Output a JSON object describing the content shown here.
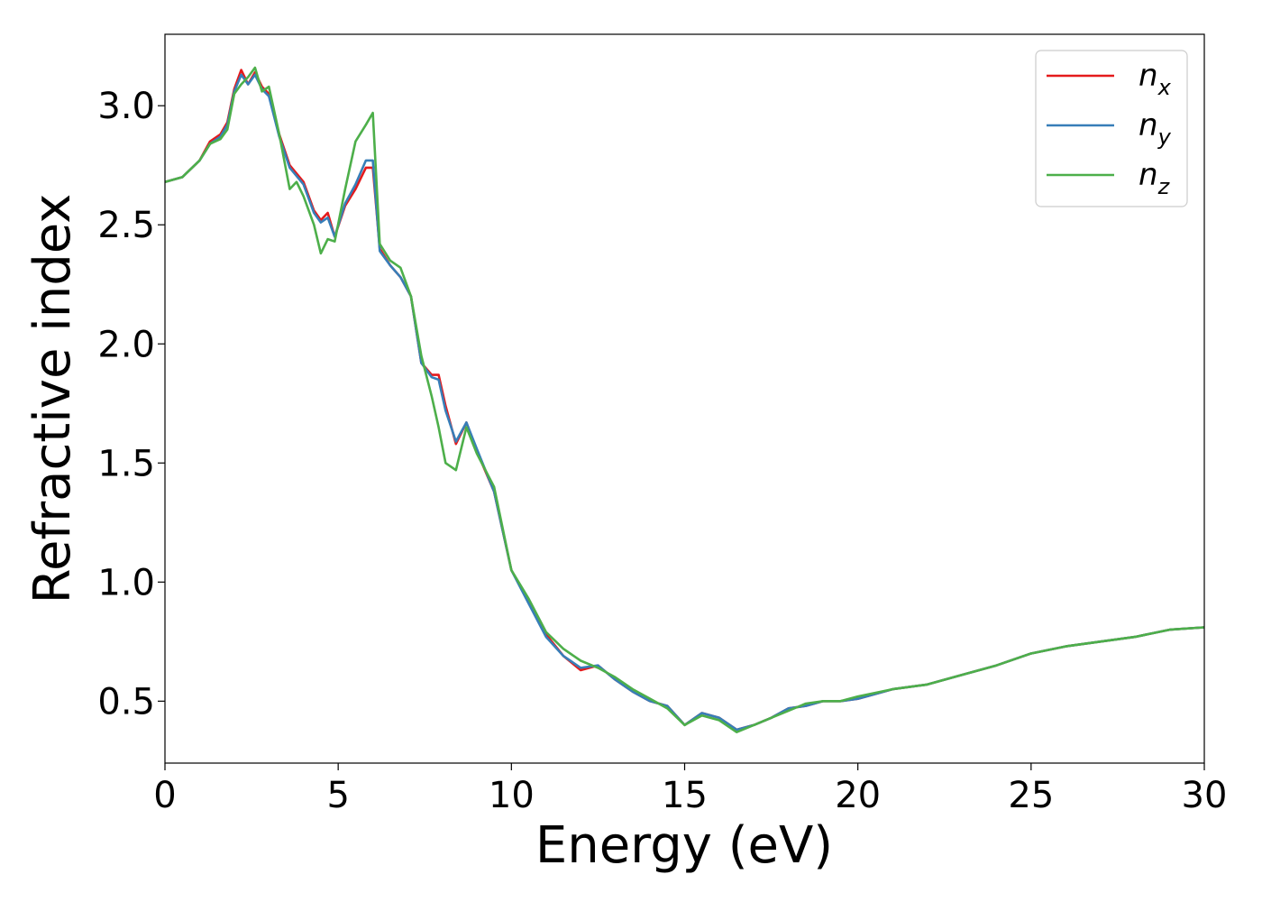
{
  "chart_data": {
    "type": "line",
    "title": "",
    "xlabel": "Energy (eV)",
    "ylabel": "Refractive index",
    "xlim": [
      0,
      30
    ],
    "ylim": [
      0.24,
      3.3
    ],
    "xticks": [
      0,
      5,
      10,
      15,
      20,
      25,
      30
    ],
    "xtick_labels": [
      "0",
      "5",
      "10",
      "15",
      "20",
      "25",
      "30"
    ],
    "yticks": [
      0.5,
      1.0,
      1.5,
      2.0,
      2.5,
      3.0
    ],
    "ytick_labels": [
      "0.5",
      "1.0",
      "1.5",
      "2.0",
      "2.5",
      "3.0"
    ],
    "grid": false,
    "legend_position": "top-right",
    "series": [
      {
        "name": "n",
        "subscript": "x",
        "color": "#e41a1c",
        "x": [
          0,
          0.5,
          1.0,
          1.3,
          1.6,
          1.8,
          2.0,
          2.2,
          2.4,
          2.6,
          2.8,
          3.0,
          3.3,
          3.6,
          4.0,
          4.3,
          4.5,
          4.7,
          4.9,
          5.2,
          5.5,
          5.8,
          6.0,
          6.2,
          6.5,
          6.8,
          7.1,
          7.4,
          7.7,
          7.9,
          8.1,
          8.4,
          8.7,
          9.0,
          9.5,
          10.0,
          10.5,
          11.0,
          11.5,
          12.0,
          12.5,
          13.0,
          13.5,
          14.0,
          14.5,
          15.0,
          15.5,
          16.0,
          16.5,
          17.0,
          17.5,
          18.0,
          18.5,
          19.0,
          19.5,
          20.0,
          21.0,
          22.0,
          23.0,
          24.0,
          25.0,
          26.0,
          27.0,
          28.0,
          29.0,
          30.0
        ],
        "y": [
          2.68,
          2.7,
          2.77,
          2.85,
          2.88,
          2.93,
          3.07,
          3.15,
          3.09,
          3.14,
          3.08,
          3.05,
          2.88,
          2.75,
          2.68,
          2.56,
          2.52,
          2.55,
          2.45,
          2.58,
          2.65,
          2.74,
          2.74,
          2.4,
          2.33,
          2.28,
          2.2,
          1.92,
          1.87,
          1.87,
          1.74,
          1.58,
          1.67,
          1.55,
          1.38,
          1.05,
          0.92,
          0.78,
          0.69,
          0.63,
          0.65,
          0.59,
          0.54,
          0.5,
          0.48,
          0.4,
          0.45,
          0.43,
          0.38,
          0.4,
          0.43,
          0.47,
          0.48,
          0.5,
          0.5,
          0.51,
          0.55,
          0.57,
          0.61,
          0.65,
          0.7,
          0.73,
          0.75,
          0.77,
          0.8,
          0.81
        ]
      },
      {
        "name": "n",
        "subscript": "y",
        "color": "#377eb8",
        "x": [
          0,
          0.5,
          1.0,
          1.3,
          1.6,
          1.8,
          2.0,
          2.2,
          2.4,
          2.6,
          2.8,
          3.0,
          3.3,
          3.6,
          4.0,
          4.3,
          4.5,
          4.7,
          4.9,
          5.2,
          5.5,
          5.8,
          6.0,
          6.2,
          6.5,
          6.8,
          7.1,
          7.4,
          7.7,
          7.9,
          8.1,
          8.4,
          8.7,
          9.0,
          9.5,
          10.0,
          10.5,
          11.0,
          11.5,
          12.0,
          12.5,
          13.0,
          13.5,
          14.0,
          14.5,
          15.0,
          15.5,
          16.0,
          16.5,
          17.0,
          17.5,
          18.0,
          18.5,
          19.0,
          19.5,
          20.0,
          21.0,
          22.0,
          23.0,
          24.0,
          25.0,
          26.0,
          27.0,
          28.0,
          29.0,
          30.0
        ],
        "y": [
          2.68,
          2.7,
          2.77,
          2.84,
          2.87,
          2.92,
          3.06,
          3.13,
          3.09,
          3.13,
          3.07,
          3.04,
          2.87,
          2.74,
          2.67,
          2.55,
          2.51,
          2.53,
          2.45,
          2.59,
          2.67,
          2.77,
          2.77,
          2.39,
          2.33,
          2.28,
          2.2,
          1.92,
          1.86,
          1.85,
          1.72,
          1.59,
          1.67,
          1.56,
          1.38,
          1.05,
          0.91,
          0.77,
          0.69,
          0.64,
          0.65,
          0.59,
          0.54,
          0.5,
          0.48,
          0.4,
          0.45,
          0.43,
          0.38,
          0.4,
          0.43,
          0.47,
          0.48,
          0.5,
          0.5,
          0.51,
          0.55,
          0.57,
          0.61,
          0.65,
          0.7,
          0.73,
          0.75,
          0.77,
          0.8,
          0.81
        ]
      },
      {
        "name": "n",
        "subscript": "z",
        "color": "#4daf4a",
        "x": [
          0,
          0.5,
          1.0,
          1.3,
          1.6,
          1.8,
          2.0,
          2.2,
          2.4,
          2.6,
          2.8,
          3.0,
          3.3,
          3.6,
          3.8,
          4.0,
          4.3,
          4.5,
          4.7,
          4.9,
          5.2,
          5.5,
          5.8,
          6.0,
          6.2,
          6.5,
          6.8,
          7.1,
          7.4,
          7.7,
          7.9,
          8.1,
          8.4,
          8.7,
          9.0,
          9.5,
          10.0,
          10.5,
          11.0,
          11.5,
          12.0,
          12.5,
          13.0,
          13.5,
          14.0,
          14.5,
          15.0,
          15.5,
          16.0,
          16.5,
          17.0,
          17.5,
          18.0,
          18.5,
          19.0,
          19.5,
          20.0,
          21.0,
          22.0,
          23.0,
          24.0,
          25.0,
          26.0,
          27.0,
          28.0,
          29.0,
          30.0
        ],
        "y": [
          2.68,
          2.7,
          2.77,
          2.84,
          2.86,
          2.9,
          3.05,
          3.09,
          3.12,
          3.16,
          3.06,
          3.08,
          2.88,
          2.65,
          2.68,
          2.62,
          2.5,
          2.38,
          2.44,
          2.43,
          2.65,
          2.85,
          2.92,
          2.97,
          2.42,
          2.35,
          2.32,
          2.2,
          1.95,
          1.78,
          1.65,
          1.5,
          1.47,
          1.65,
          1.54,
          1.4,
          1.05,
          0.93,
          0.79,
          0.72,
          0.67,
          0.64,
          0.6,
          0.55,
          0.51,
          0.47,
          0.4,
          0.44,
          0.42,
          0.37,
          0.4,
          0.43,
          0.46,
          0.49,
          0.5,
          0.5,
          0.52,
          0.55,
          0.57,
          0.61,
          0.65,
          0.7,
          0.73,
          0.75,
          0.77,
          0.8,
          0.81
        ]
      }
    ]
  }
}
